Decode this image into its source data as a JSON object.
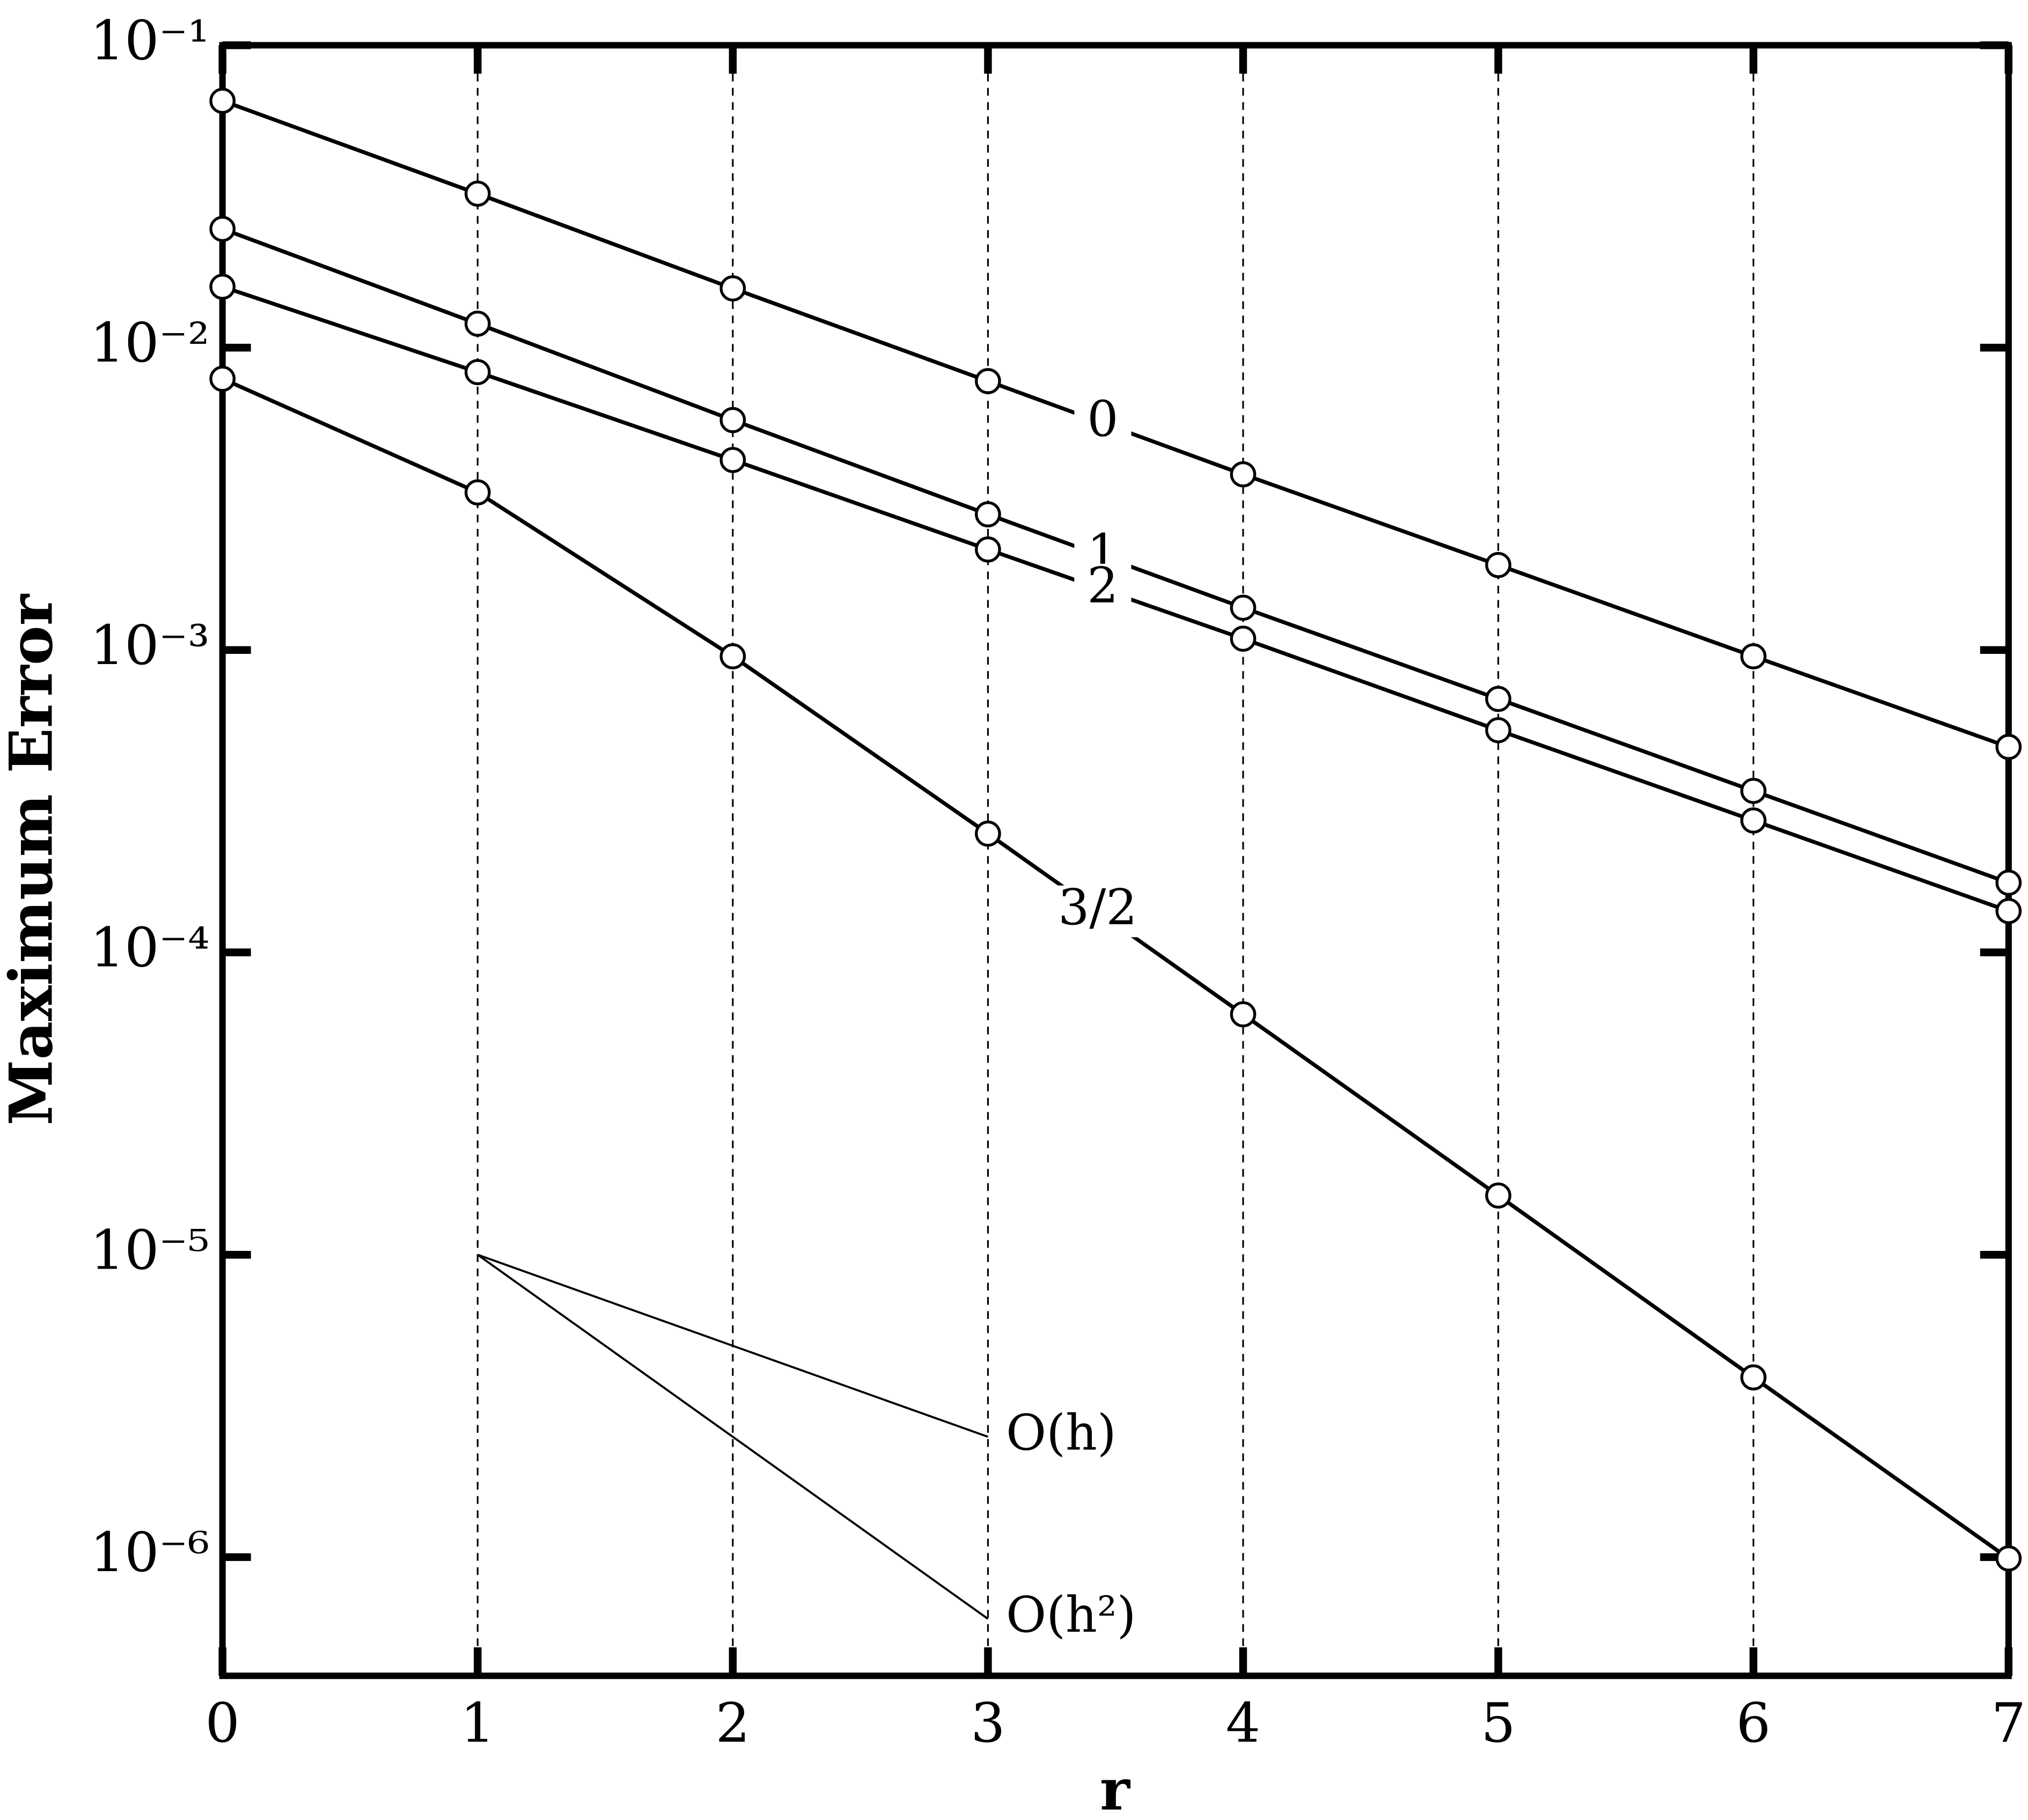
{
  "chart_data": {
    "type": "line",
    "xlabel": "r",
    "ylabel": "Maximum Error",
    "x": [
      0,
      1,
      2,
      3,
      4,
      5,
      6,
      7
    ],
    "xlim": [
      0,
      7
    ],
    "xticks": [
      0,
      1,
      2,
      3,
      4,
      5,
      6,
      7
    ],
    "ylim": [
      4.05e-07,
      0.1
    ],
    "log_y": true,
    "yticks": [
      {
        "value": 0.1,
        "label": "10⁻¹"
      },
      {
        "value": 0.01,
        "label": "10⁻²"
      },
      {
        "value": 0.001,
        "label": "10⁻³"
      },
      {
        "value": 0.0001,
        "label": "10⁻⁴"
      },
      {
        "value": 1e-05,
        "label": "10⁻⁵"
      },
      {
        "value": 1e-06,
        "label": "10⁻⁶"
      }
    ],
    "grid": "x-dashed",
    "color": "#000000",
    "series": [
      {
        "name": "0",
        "values": [
          0.0655,
          0.0323,
          0.0157,
          0.00775,
          0.00381,
          0.00191,
          0.000953,
          0.000478
        ]
      },
      {
        "name": "1",
        "values": [
          0.0247,
          0.012,
          0.00576,
          0.00281,
          0.00138,
          0.000689,
          0.000342,
          0.00017
        ]
      },
      {
        "name": "2",
        "values": [
          0.0159,
          0.0083,
          0.00425,
          0.00215,
          0.00109,
          0.000543,
          0.000273,
          0.000137
        ]
      },
      {
        "name": "3/2",
        "values": [
          0.00789,
          0.00332,
          0.000953,
          0.000247,
          6.24e-05,
          1.57e-05,
          3.93e-06,
          9.9e-07
        ]
      }
    ],
    "reference_lines": [
      {
        "name": "O(h)",
        "x": [
          1,
          3
        ],
        "values": [
          1e-05,
          2.5e-06
        ]
      },
      {
        "name": "O(h²)",
        "x": [
          1,
          3
        ],
        "values": [
          1e-05,
          6.25e-07
        ]
      }
    ]
  }
}
